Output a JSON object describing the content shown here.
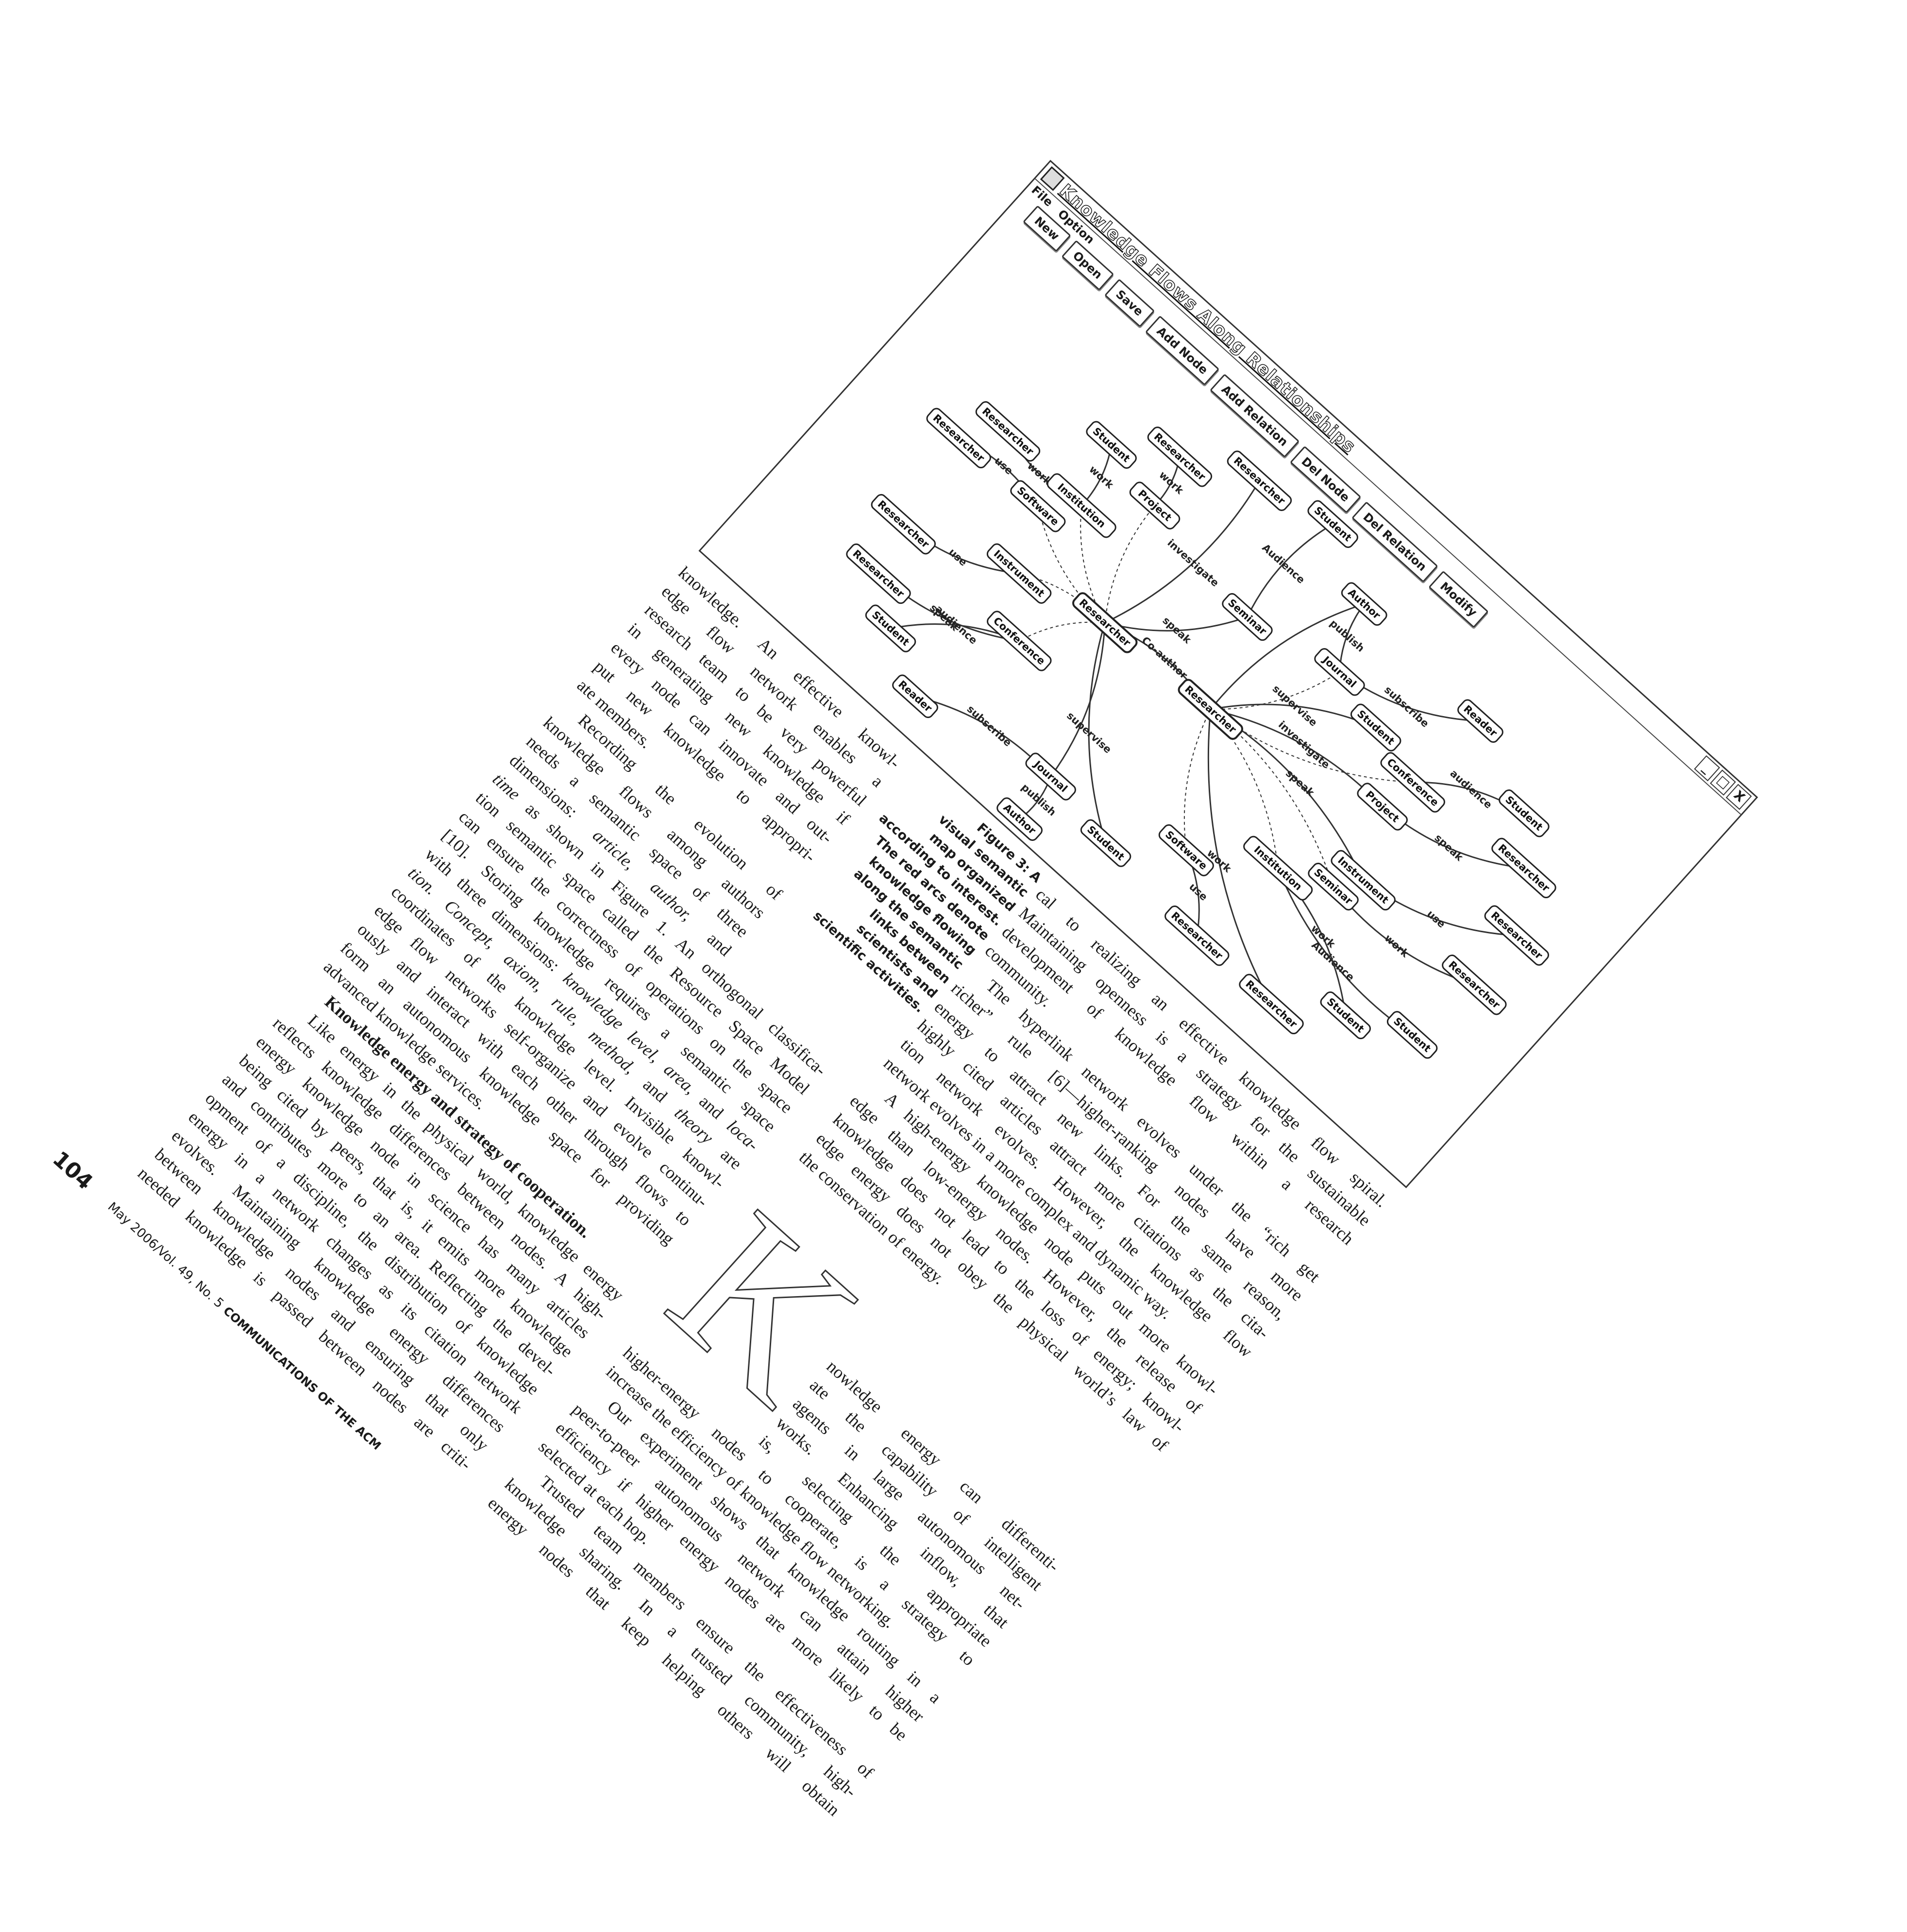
{
  "figure": {
    "window_title": "Knowledge Flows Along Relationships",
    "window_controls": [
      "_",
      "□",
      "X"
    ],
    "menu": [
      "File",
      "Option"
    ],
    "toolbar": [
      "New",
      "Open",
      "Save",
      "Add Node",
      "Add Relation",
      "Del Node",
      "Del Relation",
      "Modify"
    ],
    "nodes": [
      "Researcher",
      "Researcher",
      "Researcher",
      "Student",
      "Researcher",
      "Researcher",
      "Student",
      "Author",
      "Reader",
      "Student",
      "Researcher",
      "Researcher",
      "Researcher",
      "Student",
      "Student",
      "Researcher",
      "Researcher",
      "Student",
      "Author",
      "Journal",
      "Reader",
      "Student",
      "Researcher",
      "Researcher",
      "Researcher",
      "Software",
      "Institution",
      "Project",
      "Seminar",
      "Instrument",
      "Conference",
      "Journal",
      "Student",
      "Conference",
      "Project",
      "Instrument",
      "Seminar",
      "Institution",
      "Software"
    ],
    "edge_labels": [
      "use",
      "work",
      "work",
      "work",
      "use",
      "speak",
      "audience",
      "subscribe",
      "publish",
      "investigate",
      "Audience",
      "speak",
      "Co-author",
      "publish",
      "subscribe",
      "supervise",
      "audience",
      "speak",
      "investigate",
      "use",
      "work",
      "Audience",
      "work",
      "use",
      "work",
      "speak",
      "supervise"
    ],
    "caption": [
      "Figure 3: A",
      "visual semantic",
      "map organized",
      "according to interest.",
      "The red arcs denote",
      "knowledge flowing",
      "along the semantic",
      "links between",
      "scientists and",
      "scientific activities."
    ]
  },
  "left_column": [
    "knowledge. An effective knowl-",
    "edge flow network enables a",
    "research team to be very powerful",
    "in generating new knowledge if",
    "every node can innovate and out-",
    "put new knowledge to appropri-",
    "ate members.",
    "Recording the evolution of",
    "knowledge flows among authors",
    "needs a semantic space of three",
    [
      "dimensions: ",
      {
        "text": "article, author,",
        "style": "italic"
      },
      " and"
    ],
    [
      {
        "text": "time",
        "style": "italic"
      },
      " as shown in Figure 1. An orthogonal classifica-"
    ],
    "tion semantic space called the Resource Space Model",
    "can ensure the correctness of operations on the space",
    "[10]. Storing knowledge requires a semantic space",
    [
      "with three dimensions: ",
      {
        "text": "knowledge level, area,",
        "style": "italic"
      },
      " and ",
      {
        "text": "loca-",
        "style": "italic"
      }
    ],
    [
      {
        "text": "tion. Concept, axiom, rule, method,",
        "style": "italic"
      },
      " and ",
      {
        "text": "theory",
        "style": "italic"
      },
      " are"
    ],
    "coordinates of the knowledge level. Invisible knowl-",
    "edge flow networks self-organize and evolve continu-",
    "ously and interact with each other through flows to",
    "form an autonomous knowledge space for providing",
    "advanced knowledge services.",
    [
      {
        "text": "Knowledge energy and strategy of cooperation.",
        "style": "bold"
      }
    ],
    "Like energy in the physical world, knowledge energy",
    "reflects knowledge differences between nodes. A high-",
    "energy knowledge node in science has many articles",
    "being cited by peers, that is, it emits more knowledge",
    "and contributes more to an area. Reflecting the devel-",
    "opment of a discipline, the distribution of knowledge",
    "energy in a network changes as its citation network",
    "evolves. Maintaining knowledge energy differences",
    "between knowledge nodes and ensuring that only",
    "needed knowledge is passed between nodes are criti-"
  ],
  "right_column": [
    "cal to realizing an effective knowledge flow spiral.",
    "Maintaining openness is a strategy for the sustainable",
    "development of knowledge flow within a research",
    "community.",
    "The hyperlink network evolves under the “rich get",
    "richer” rule [6]—higher-ranking nodes have more",
    "energy to attract new links. For the same reason,",
    "highly cited articles attract more citations as the cita-",
    "tion network evolves. However, the knowledge flow",
    "network evolves in a more complex and dynamic way.",
    "A high-energy knowledge node puts out more knowl-",
    "edge than low-energy nodes. However, the release of",
    "knowledge does not lead to the loss of energy; knowl-",
    "edge energy does not obey the physical world’s law of",
    "the conservation of energy."
  ],
  "drop_cap": "K",
  "right_column_continued": [
    "nowledge energy can differenti-",
    "ate the capability of intelligent",
    "agents in large autonomous net-",
    "works. Enhancing inflow, that",
    "is, selecting the appropriate",
    "higher-energy nodes to cooperate, is a strategy to",
    "increase the efficiency of knowledge flow networking.",
    "Our experiment shows that knowledge routing in a",
    "peer-to-peer autonomous network can attain higher",
    "efficiency if higher energy nodes are more likely to be",
    "selected at each hop.",
    "Trusted team members ensure the effectiveness of",
    "knowledge sharing. In a trusted community, high-",
    "energy nodes that keep helping others will obtain"
  ],
  "footer": {
    "page_number": "104",
    "issue": "May 2006/Vol. 49, No. 5",
    "journal": "COMMUNICATIONS OF THE ACM"
  }
}
